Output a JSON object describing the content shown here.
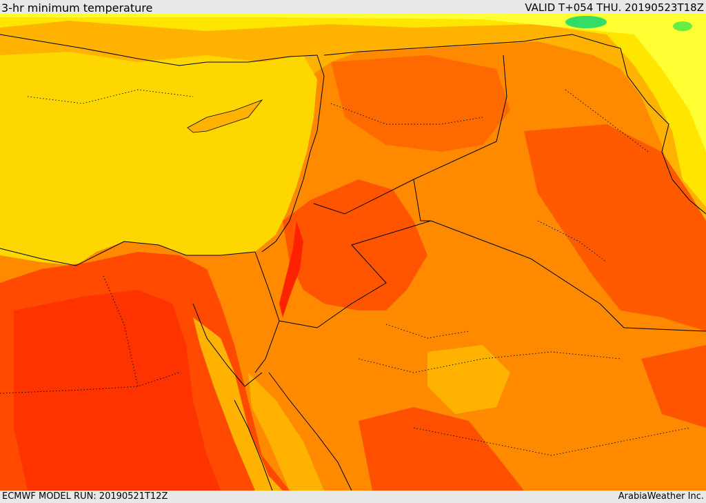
{
  "header": {
    "title": "3-hr minimum temperature",
    "valid": "VALID T+054 THU. 20190523T18Z"
  },
  "footer": {
    "model_run": "ECMWF MODEL RUN: 20190521T12Z",
    "credit": "ArabiaWeather Inc."
  },
  "colors": {
    "sea": "#ffd700",
    "warm_yellow": "#ffb300",
    "orange": "#ff8a00",
    "deep_orange": "#ff6a00",
    "red": "#ff3300",
    "pale_yellow": "#ffff33",
    "green": "#33dd66",
    "borders": "#000000"
  }
}
